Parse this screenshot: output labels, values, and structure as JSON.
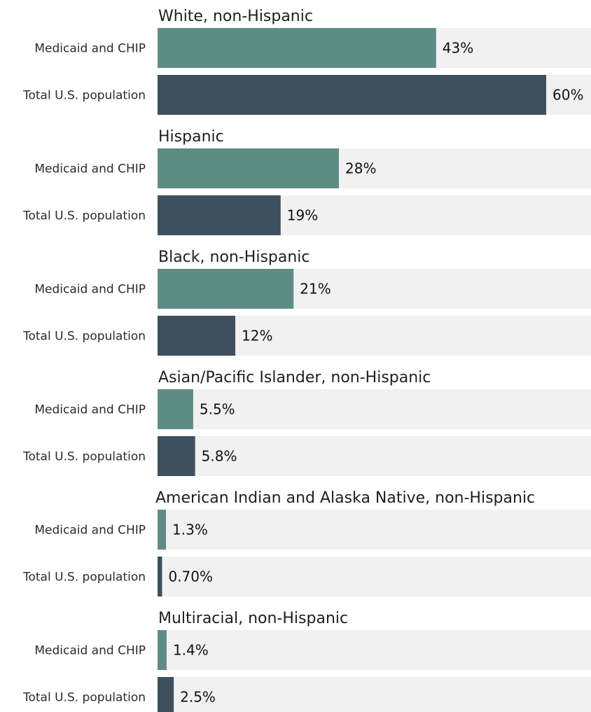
{
  "chart_data": {
    "type": "bar",
    "orientation": "horizontal",
    "layout": "grouped",
    "value_unit": "percent",
    "grid": false,
    "series": [
      {
        "key": "medicaid",
        "name": "Medicaid and CHIP",
        "color": "#5f8b85"
      },
      {
        "key": "total",
        "name": "Total U.S. population",
        "color": "#404f5e"
      }
    ],
    "track_color": "#f0f1f0",
    "groups": [
      {
        "title": "White, non-Hispanic",
        "rows": [
          {
            "series": "medicaid",
            "label": "Medicaid and CHIP",
            "value": 43,
            "value_label": "43%"
          },
          {
            "series": "total",
            "label": "Total U.S. population",
            "value": 60,
            "value_label": "60%"
          }
        ]
      },
      {
        "title": "Hispanic",
        "rows": [
          {
            "series": "medicaid",
            "label": "Medicaid and CHIP",
            "value": 28,
            "value_label": "28%"
          },
          {
            "series": "total",
            "label": "Total U.S. population",
            "value": 19,
            "value_label": "19%"
          }
        ]
      },
      {
        "title": "Black, non-Hispanic",
        "rows": [
          {
            "series": "medicaid",
            "label": "Medicaid and CHIP",
            "value": 21,
            "value_label": "21%"
          },
          {
            "series": "total",
            "label": "Total U.S. population",
            "value": 12,
            "value_label": "12%"
          }
        ]
      },
      {
        "title": "Asian/Pacific Islander, non-Hispanic",
        "rows": [
          {
            "series": "medicaid",
            "label": "Medicaid and CHIP",
            "value": 5.5,
            "value_label": "5.5%"
          },
          {
            "series": "total",
            "label": "Total U.S. population",
            "value": 5.8,
            "value_label": "5.8%"
          }
        ]
      },
      {
        "title": "American Indian and Alaska Native, non-Hispanic",
        "rows": [
          {
            "series": "medicaid",
            "label": "Medicaid and CHIP",
            "value": 1.3,
            "value_label": "1.3%"
          },
          {
            "series": "total",
            "label": "Total U.S. population",
            "value": 0.7,
            "value_label": "0.70%"
          }
        ]
      },
      {
        "title": "Multiracial, non-Hispanic",
        "rows": [
          {
            "series": "medicaid",
            "label": "Medicaid and CHIP",
            "value": 1.4,
            "value_label": "1.4%"
          },
          {
            "series": "total",
            "label": "Total U.S. population",
            "value": 2.5,
            "value_label": "2.5%"
          }
        ]
      }
    ]
  }
}
